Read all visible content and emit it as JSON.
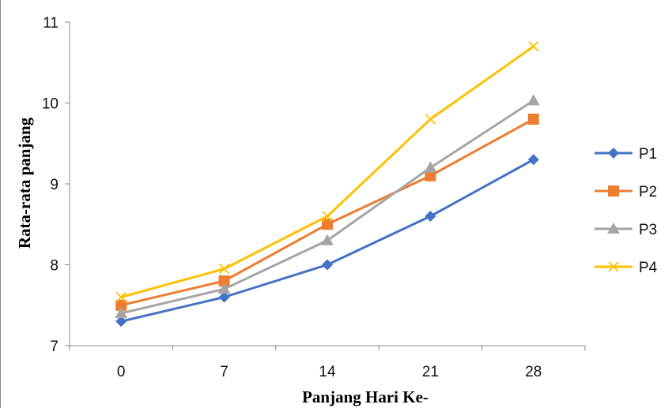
{
  "chart_data": {
    "type": "line",
    "categories": [
      "0",
      "7",
      "14",
      "21",
      "28"
    ],
    "xlabel": "Panjang Hari Ke-",
    "ylabel": "Rata-rata panjang",
    "ylim": [
      7,
      11
    ],
    "yticks": [
      "7",
      "8",
      "9",
      "10",
      "11"
    ],
    "grid": false,
    "legend_position": "right",
    "series": [
      {
        "name": "P1",
        "values": [
          7.3,
          7.6,
          8.0,
          8.6,
          9.3
        ],
        "color": "#4472C4",
        "marker": "diamond"
      },
      {
        "name": "P2",
        "values": [
          7.5,
          7.8,
          8.5,
          9.1,
          9.8
        ],
        "color": "#ED7D31",
        "marker": "square"
      },
      {
        "name": "P3",
        "values": [
          7.4,
          7.7,
          8.3,
          9.2,
          10.03
        ],
        "color": "#A5A5A5",
        "marker": "triangle"
      },
      {
        "name": "P4",
        "values": [
          7.6,
          7.95,
          8.6,
          9.8,
          10.7
        ],
        "color": "#FFC000",
        "marker": "x"
      }
    ]
  }
}
